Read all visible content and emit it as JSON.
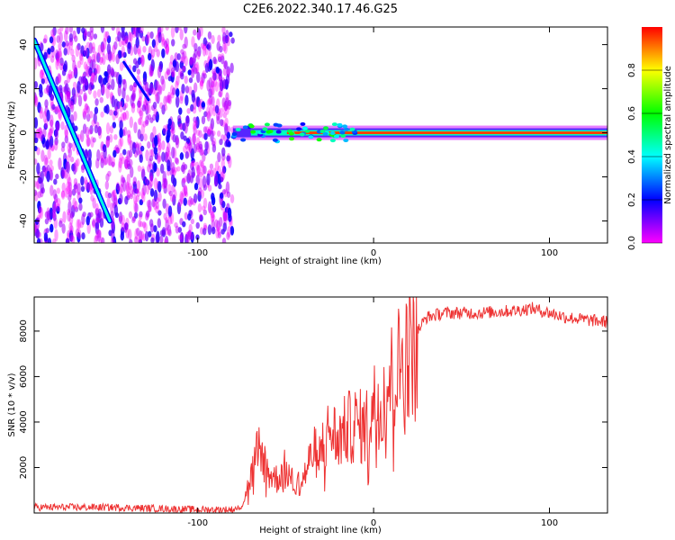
{
  "title": "C2E6.2022.340.17.46.G25",
  "chart_data": [
    {
      "type": "heatmap",
      "xlabel": "Height of straight line (km)",
      "ylabel": "Frequency (Hz)",
      "xlim": [
        -193,
        133
      ],
      "ylim": [
        -50,
        48
      ],
      "x_ticks": [
        -100,
        0,
        100
      ],
      "x_tick_labels": [
        "-100",
        "0",
        "100"
      ],
      "y_ticks": [
        -40,
        -20,
        0,
        20,
        40
      ],
      "y_tick_labels": [
        "-40",
        "-20",
        "0",
        "20",
        "40"
      ],
      "colorbar": {
        "label": "Normalized spectral amplitude",
        "range": [
          0,
          1
        ],
        "ticks": [
          0.0,
          0.2,
          0.4,
          0.6,
          0.8
        ],
        "tick_labels": [
          "0.0",
          "0.2",
          "0.4",
          "0.6",
          "0.8"
        ],
        "colors": [
          "#ff00ff",
          "#0000ff",
          "#00ffff",
          "#00ff00",
          "#ffff00",
          "#ff0000"
        ]
      },
      "features": {
        "noise_region_x": [
          -193,
          -80
        ],
        "diagonal_line": {
          "x": [
            -193,
            -150
          ],
          "y": [
            42,
            -40
          ]
        },
        "secondary_line": {
          "x": [
            -142,
            -128
          ],
          "y": [
            32,
            15
          ]
        },
        "carrier_line": {
          "x": [
            -80,
            133
          ],
          "y": 0
        }
      },
      "grid": false
    },
    {
      "type": "line",
      "xlabel": "Height of straight line (km)",
      "ylabel": "SNR (10 * v/v)",
      "xlim": [
        -193,
        133
      ],
      "ylim": [
        0,
        9500
      ],
      "x_ticks": [
        -100,
        0,
        100
      ],
      "x_tick_labels": [
        "-100",
        "0",
        "100"
      ],
      "y_ticks": [
        2000,
        4000,
        6000,
        8000
      ],
      "y_tick_labels": [
        "2000",
        "4000",
        "6000",
        "8000"
      ],
      "series": [
        {
          "color": "#ee3333",
          "x": [
            -193,
            -150,
            -100,
            -80,
            -75,
            -70,
            -65,
            -60,
            -55,
            -50,
            -45,
            -40,
            -35,
            -30,
            -25,
            -20,
            -15,
            -10,
            -5,
            0,
            5,
            10,
            15,
            20,
            25,
            30,
            40,
            60,
            80,
            90,
            100,
            110,
            120,
            133
          ],
          "y": [
            250,
            250,
            150,
            150,
            300,
            1500,
            3000,
            1800,
            1500,
            2000,
            1200,
            1500,
            2600,
            2800,
            3600,
            3300,
            3700,
            3900,
            3700,
            4700,
            5300,
            5900,
            6500,
            7200,
            8000,
            8600,
            8800,
            8800,
            8900,
            9000,
            8800,
            8600,
            8500,
            8400
          ]
        }
      ],
      "grid": false
    }
  ]
}
